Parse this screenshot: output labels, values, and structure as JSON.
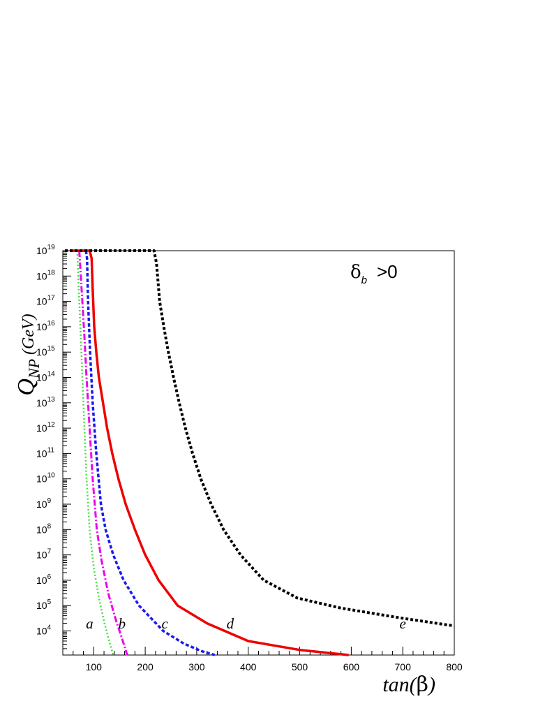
{
  "chart_data": {
    "type": "line",
    "xlabel": "tan(β)",
    "ylabel": "Q_NP (GeV)",
    "annotation": "δ_b  >0",
    "xlim": [
      40,
      800
    ],
    "ylim_log10": [
      3.05,
      19
    ],
    "yscale": "log",
    "grid": false,
    "x_ticks": [
      100,
      200,
      300,
      400,
      500,
      600,
      700,
      800
    ],
    "y_ticks_log10": [
      4,
      5,
      6,
      7,
      8,
      9,
      10,
      11,
      12,
      13,
      14,
      15,
      16,
      17,
      18,
      19
    ],
    "series": [
      {
        "label": "a",
        "color": "#44dd44",
        "dash": "2,3",
        "width": 2.5,
        "points": [
          [
            68,
            19
          ],
          [
            72,
            17
          ],
          [
            75,
            15.6
          ],
          [
            78,
            14
          ],
          [
            82,
            12
          ],
          [
            86,
            10
          ],
          [
            92,
            8
          ],
          [
            100,
            6.5
          ],
          [
            110,
            5.3
          ],
          [
            121,
            4.3
          ],
          [
            130,
            3.6
          ],
          [
            138,
            3.05
          ]
        ]
      },
      {
        "label": "b",
        "color": "#ee00ee",
        "dash": "9,3,2,3",
        "width": 3,
        "points": [
          [
            72,
            19
          ],
          [
            78,
            17
          ],
          [
            82,
            15.6
          ],
          [
            86,
            14
          ],
          [
            92,
            12
          ],
          [
            98,
            10
          ],
          [
            106,
            8
          ],
          [
            115,
            6.8
          ],
          [
            128,
            5.5
          ],
          [
            142,
            4.5
          ],
          [
            155,
            3.7
          ],
          [
            165,
            3.05
          ]
        ]
      },
      {
        "label": "c",
        "color": "#1a1aee",
        "dash": "5,3",
        "width": 3.5,
        "points": [
          [
            85,
            19
          ],
          [
            87,
            18.7
          ],
          [
            89,
            17
          ],
          [
            93,
            15
          ],
          [
            98,
            13
          ],
          [
            105,
            11
          ],
          [
            114,
            9
          ],
          [
            123,
            8
          ],
          [
            138,
            7
          ],
          [
            158,
            6
          ],
          [
            188,
            5
          ],
          [
            235,
            4
          ],
          [
            275,
            3.5
          ],
          [
            310,
            3.2
          ],
          [
            335,
            3.05
          ]
        ]
      },
      {
        "label": "d",
        "color": "#ee0000",
        "dash": "",
        "width": 3.5,
        "points": [
          [
            55,
            19
          ],
          [
            92,
            19
          ],
          [
            96,
            18.7
          ],
          [
            98,
            17.5
          ],
          [
            101,
            16
          ],
          [
            105,
            15
          ],
          [
            110,
            14
          ],
          [
            118,
            13
          ],
          [
            126,
            12
          ],
          [
            136,
            11
          ],
          [
            148,
            10
          ],
          [
            162,
            9
          ],
          [
            180,
            8
          ],
          [
            200,
            7
          ],
          [
            226,
            6
          ],
          [
            263,
            5
          ],
          [
            320,
            4.3
          ],
          [
            400,
            3.6
          ],
          [
            500,
            3.25
          ],
          [
            595,
            3.05
          ]
        ]
      },
      {
        "label": "e",
        "color": "#000000",
        "dash": "4,3",
        "width": 4,
        "points": [
          [
            44,
            19
          ],
          [
            217,
            19
          ],
          [
            222,
            18.5
          ],
          [
            228,
            17
          ],
          [
            236,
            16
          ],
          [
            245,
            15
          ],
          [
            255,
            14
          ],
          [
            266,
            13
          ],
          [
            278,
            12
          ],
          [
            292,
            11
          ],
          [
            308,
            10
          ],
          [
            328,
            9
          ],
          [
            352,
            8
          ],
          [
            385,
            7
          ],
          [
            430,
            6
          ],
          [
            495,
            5.3
          ],
          [
            580,
            4.9
          ],
          [
            700,
            4.5
          ],
          [
            800,
            4.2
          ]
        ]
      }
    ],
    "label_positions": [
      {
        "label": "a",
        "x": 92,
        "y": 4.1
      },
      {
        "label": "b",
        "x": 155,
        "y": 4.1
      },
      {
        "label": "c",
        "x": 238,
        "y": 4.1
      },
      {
        "label": "d",
        "x": 365,
        "y": 4.1
      },
      {
        "label": "e",
        "x": 700,
        "y": 4.1
      }
    ]
  }
}
